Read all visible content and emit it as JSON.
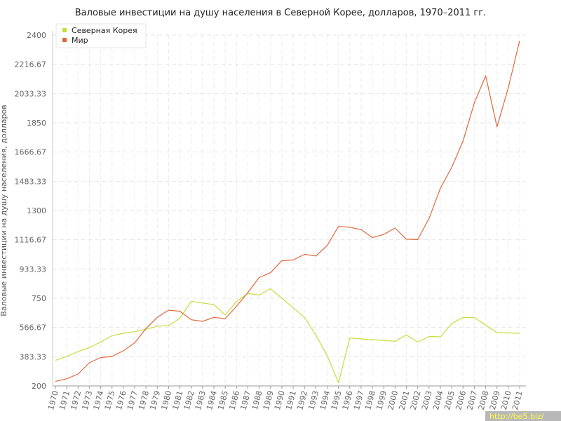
{
  "chart_data": {
    "type": "line",
    "title": "Валовые инвестиции на душу населения в Северной Корее, долларов, 1970–2011 гг.",
    "ylabel": "Валовые инвестиции на душу населения, долларов",
    "xlabel": "",
    "ylim": [
      200,
      2400
    ],
    "yticks": [
      "200",
      "383.33",
      "566.67",
      "750",
      "933.33",
      "1116.67",
      "1300",
      "1483.33",
      "1666.67",
      "1850",
      "2033.33",
      "2216.67",
      "2400"
    ],
    "x": [
      "1970",
      "1971",
      "1972",
      "1973",
      "1974",
      "1975",
      "1976",
      "1977",
      "1978",
      "1979",
      "1980",
      "1981",
      "1982",
      "1983",
      "1984",
      "1985",
      "1986",
      "1987",
      "1988",
      "1989",
      "1990",
      "1991",
      "1992",
      "1993",
      "1994",
      "1995",
      "1996",
      "1997",
      "1998",
      "1999",
      "2000",
      "2001",
      "2002",
      "2003",
      "2004",
      "2005",
      "2006",
      "2007",
      "2008",
      "2009",
      "2010",
      "2011"
    ],
    "series": [
      {
        "name": "Северная Корея",
        "color": "#c8dc3c",
        "values": [
          360,
          385,
          415,
          440,
          475,
          515,
          530,
          540,
          555,
          575,
          578,
          625,
          730,
          720,
          710,
          645,
          730,
          780,
          770,
          810,
          750,
          690,
          630,
          520,
          390,
          220,
          500,
          495,
          490,
          485,
          480,
          520,
          475,
          510,
          508,
          590,
          630,
          628,
          580,
          535,
          532,
          530
        ]
      },
      {
        "name": "Мир",
        "color": "#e0683c",
        "values": [
          228,
          245,
          275,
          345,
          378,
          385,
          420,
          470,
          560,
          630,
          675,
          668,
          615,
          605,
          630,
          622,
          700,
          785,
          880,
          910,
          985,
          990,
          1025,
          1015,
          1080,
          1200,
          1195,
          1180,
          1130,
          1150,
          1190,
          1120,
          1118,
          1250,
          1440,
          1570,
          1735,
          1975,
          2145,
          1825,
          2070,
          2365
        ]
      }
    ],
    "legend_position": "top-left",
    "grid": true
  },
  "watermark": "http://be5.biz/"
}
